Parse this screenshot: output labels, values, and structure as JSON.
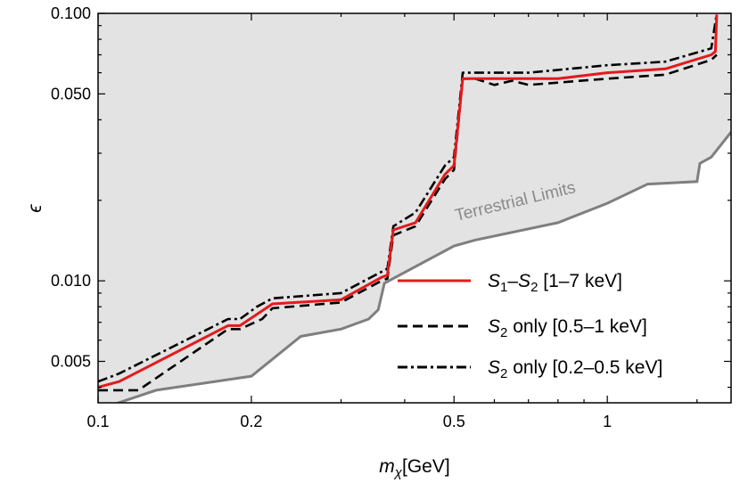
{
  "chart_data": {
    "type": "line",
    "xscale": "log",
    "yscale": "log",
    "xlim": [
      0.1,
      1.75
    ],
    "ylim": [
      0.0035,
      0.1
    ],
    "xlabel": "m_χ[GeV]",
    "ylabel": "ϵ",
    "xticks": [
      {
        "value": 0.1,
        "label": "0.1"
      },
      {
        "value": 0.2,
        "label": "0.2"
      },
      {
        "value": 0.5,
        "label": "0.5"
      },
      {
        "value": 1,
        "label": "1"
      }
    ],
    "yticks": [
      {
        "value": 0.005,
        "label": "0.005"
      },
      {
        "value": 0.01,
        "label": "0.010"
      },
      {
        "value": 0.05,
        "label": "0.050"
      },
      {
        "value": 0.1,
        "label": "0.100"
      }
    ],
    "annotation": "Terrestrial Limits",
    "colors": {
      "shade": "#e3e3e3",
      "terrestrial": "#7f7f7f",
      "s1s2": "#e41a1c",
      "s2": "#000000"
    },
    "terrestrial_limit": {
      "x": [
        0.1,
        0.13,
        0.2,
        0.25,
        0.3,
        0.34,
        0.355,
        0.365,
        0.5,
        0.55,
        0.8,
        1.0,
        1.2,
        1.5,
        1.52,
        1.6,
        1.75
      ],
      "y": [
        0.0033,
        0.0039,
        0.0044,
        0.0062,
        0.0066,
        0.0072,
        0.0078,
        0.0098,
        0.0135,
        0.0142,
        0.0165,
        0.0195,
        0.023,
        0.0235,
        0.0275,
        0.029,
        0.036
      ]
    },
    "series": [
      {
        "name": "S1–S2 [1–7 keV]",
        "label_parts": [
          "S",
          "1",
          "–",
          "S",
          "2",
          " [1–7 keV]"
        ],
        "style": "solid",
        "color": "#e41a1c",
        "x": [
          0.1,
          0.11,
          0.18,
          0.19,
          0.205,
          0.22,
          0.3,
          0.36,
          0.37,
          0.38,
          0.42,
          0.48,
          0.5,
          0.52,
          0.6,
          0.8,
          1.0,
          1.3,
          1.6,
          1.63,
          1.64
        ],
        "y": [
          0.004,
          0.0042,
          0.0068,
          0.0068,
          0.0075,
          0.0082,
          0.0085,
          0.0103,
          0.0105,
          0.0155,
          0.0165,
          0.025,
          0.027,
          0.057,
          0.057,
          0.057,
          0.06,
          0.062,
          0.07,
          0.072,
          0.099
        ]
      },
      {
        "name": "S2 only [0.5–1 keV]",
        "label_parts": [
          "S",
          "2",
          "",
          "",
          "",
          " only [0.5–1 keV]"
        ],
        "style": "dashed",
        "color": "#000000",
        "x": [
          0.1,
          0.12,
          0.18,
          0.19,
          0.21,
          0.22,
          0.3,
          0.36,
          0.37,
          0.38,
          0.42,
          0.48,
          0.5,
          0.52,
          0.55,
          0.6,
          0.65,
          0.7,
          1.0,
          1.3,
          1.6,
          1.64
        ],
        "y": [
          0.0039,
          0.0039,
          0.0066,
          0.0066,
          0.0072,
          0.0079,
          0.0083,
          0.01,
          0.0102,
          0.0148,
          0.016,
          0.024,
          0.026,
          0.057,
          0.057,
          0.054,
          0.056,
          0.054,
          0.057,
          0.059,
          0.067,
          0.07
        ]
      },
      {
        "name": "S2 only [0.2–0.5 keV]",
        "label_parts": [
          "S",
          "2",
          "",
          "",
          "",
          " only [0.2–0.5 keV]"
        ],
        "style": "dashdot",
        "color": "#000000",
        "x": [
          0.1,
          0.11,
          0.18,
          0.19,
          0.205,
          0.22,
          0.3,
          0.36,
          0.37,
          0.38,
          0.42,
          0.48,
          0.5,
          0.52,
          0.7,
          1.0,
          1.3,
          1.6,
          1.64
        ],
        "y": [
          0.0042,
          0.0045,
          0.0072,
          0.0072,
          0.008,
          0.0086,
          0.009,
          0.0108,
          0.0111,
          0.016,
          0.018,
          0.027,
          0.029,
          0.06,
          0.06,
          0.064,
          0.066,
          0.074,
          0.1
        ]
      }
    ]
  }
}
